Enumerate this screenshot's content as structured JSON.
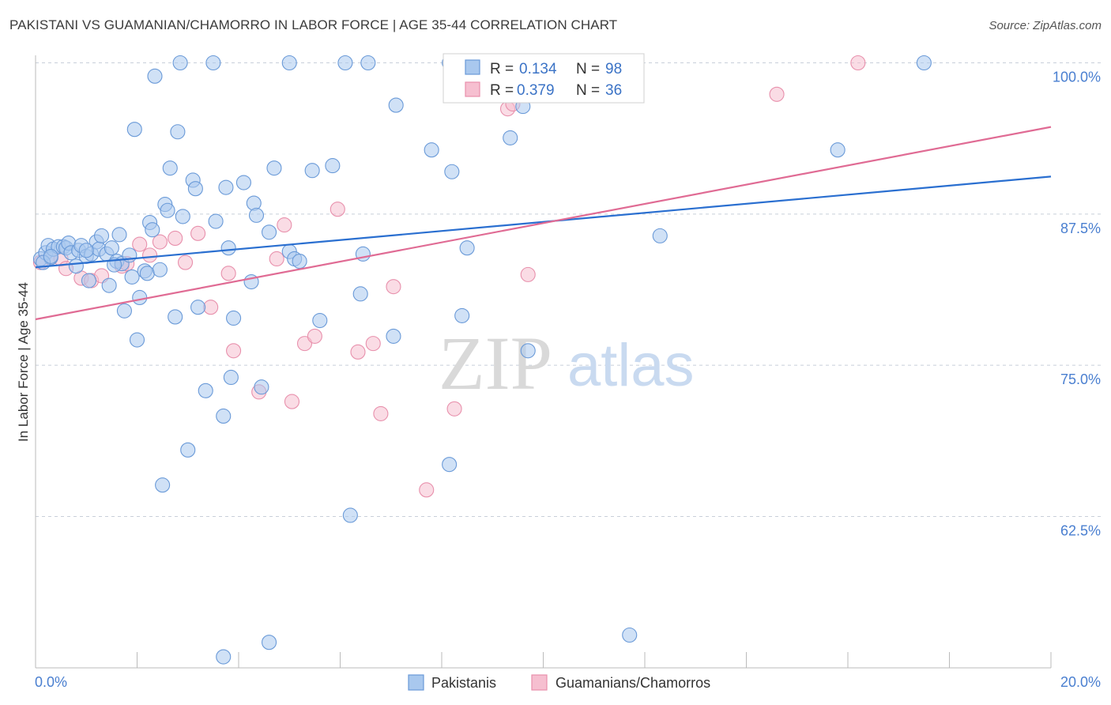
{
  "title": "PAKISTANI VS GUAMANIAN/CHAMORRO IN LABOR FORCE | AGE 35-44 CORRELATION CHART",
  "source": "Source: ZipAtlas.com",
  "watermark": {
    "zip": "ZIP",
    "atlas": "atlas"
  },
  "colors": {
    "series1_fill": "#a9c8ee",
    "series1_stroke": "#6a9ad8",
    "series1_line": "#2a6fd0",
    "series2_fill": "#f6bfd0",
    "series2_stroke": "#e890ac",
    "series2_line": "#e06b94",
    "grid": "#c8cfd9",
    "axis_label": "#4a7fd0"
  },
  "legend": {
    "series1": {
      "r_label": "R =",
      "r_value": "0.134",
      "n_label": "N =",
      "n_value": "98"
    },
    "series2": {
      "r_label": "R =",
      "r_value": "0.379",
      "n_label": "N =",
      "n_value": "36"
    }
  },
  "chart_data": {
    "type": "scatter",
    "xlabel": "",
    "ylabel": "In Labor Force | Age 35-44",
    "xlim": [
      0,
      20
    ],
    "ylim": [
      50,
      101
    ],
    "x_tick_labels": [
      "0.0%",
      "20.0%"
    ],
    "y_ticks": [
      62.5,
      75.0,
      87.5,
      100.0
    ],
    "y_tick_labels": [
      "62.5%",
      "75.0%",
      "87.5%",
      "100.0%"
    ],
    "grid": "horizontal dashed",
    "legend_position": "top-center",
    "series": [
      {
        "name": "Pakistanis",
        "trend": {
          "x": [
            0,
            20
          ],
          "y": [
            83.1,
            90.6
          ]
        },
        "points": [
          [
            0.1,
            83.8
          ],
          [
            0.2,
            84.3
          ],
          [
            0.25,
            84.9
          ],
          [
            0.3,
            83.9
          ],
          [
            0.35,
            84.6
          ],
          [
            0.45,
            84.8
          ],
          [
            0.55,
            84.8
          ],
          [
            0.6,
            84.7
          ],
          [
            0.65,
            85.1
          ],
          [
            0.7,
            84.3
          ],
          [
            0.8,
            83.2
          ],
          [
            0.85,
            84.5
          ],
          [
            0.9,
            84.9
          ],
          [
            1.0,
            84.0
          ],
          [
            1.05,
            82.0
          ],
          [
            1.1,
            84.2
          ],
          [
            1.2,
            85.2
          ],
          [
            1.25,
            84.6
          ],
          [
            1.3,
            85.7
          ],
          [
            1.4,
            84.2
          ],
          [
            1.45,
            81.6
          ],
          [
            1.5,
            84.7
          ],
          [
            1.6,
            83.6
          ],
          [
            1.65,
            85.8
          ],
          [
            1.7,
            83.4
          ],
          [
            1.75,
            79.5
          ],
          [
            1.85,
            84.1
          ],
          [
            1.9,
            82.3
          ],
          [
            1.95,
            94.5
          ],
          [
            2.0,
            77.1
          ],
          [
            2.05,
            80.6
          ],
          [
            2.15,
            82.8
          ],
          [
            2.2,
            82.6
          ],
          [
            2.25,
            86.8
          ],
          [
            2.3,
            86.2
          ],
          [
            2.35,
            98.9
          ],
          [
            2.45,
            82.9
          ],
          [
            2.5,
            65.1
          ],
          [
            2.55,
            88.3
          ],
          [
            2.6,
            87.8
          ],
          [
            2.65,
            91.3
          ],
          [
            2.75,
            79.0
          ],
          [
            2.8,
            94.3
          ],
          [
            2.85,
            100.0
          ],
          [
            2.9,
            87.3
          ],
          [
            3.0,
            68.0
          ],
          [
            3.1,
            90.3
          ],
          [
            3.15,
            89.6
          ],
          [
            3.2,
            79.8
          ],
          [
            3.35,
            72.9
          ],
          [
            3.5,
            100.0
          ],
          [
            3.55,
            86.9
          ],
          [
            3.7,
            70.8
          ],
          [
            3.75,
            89.7
          ],
          [
            3.8,
            84.7
          ],
          [
            3.85,
            74.0
          ],
          [
            3.9,
            78.9
          ],
          [
            4.1,
            90.1
          ],
          [
            4.25,
            81.9
          ],
          [
            4.3,
            88.4
          ],
          [
            4.35,
            87.4
          ],
          [
            4.45,
            73.2
          ],
          [
            4.6,
            86.0
          ],
          [
            4.7,
            91.3
          ],
          [
            5.0,
            84.4
          ],
          [
            5.1,
            83.8
          ],
          [
            5.2,
            83.6
          ],
          [
            5.45,
            91.1
          ],
          [
            5.6,
            78.7
          ],
          [
            5.85,
            91.5
          ],
          [
            6.2,
            62.6
          ],
          [
            6.4,
            80.9
          ],
          [
            6.45,
            84.2
          ],
          [
            6.55,
            100.0
          ],
          [
            7.05,
            77.4
          ],
          [
            7.1,
            96.5
          ],
          [
            7.8,
            92.8
          ],
          [
            8.15,
            66.8
          ],
          [
            8.2,
            91.0
          ],
          [
            8.4,
            79.1
          ],
          [
            8.5,
            84.7
          ],
          [
            9.35,
            93.8
          ],
          [
            9.6,
            96.4
          ],
          [
            9.7,
            76.2
          ],
          [
            12.3,
            85.7
          ],
          [
            15.8,
            92.8
          ],
          [
            17.5,
            100.0
          ],
          [
            0.15,
            83.5
          ],
          [
            0.3,
            84.0
          ],
          [
            1.0,
            84.5
          ],
          [
            1.55,
            83.3
          ],
          [
            3.7,
            50.9
          ],
          [
            4.6,
            52.1
          ],
          [
            11.7,
            52.7
          ],
          [
            5.0,
            100.0
          ],
          [
            6.1,
            100.0
          ],
          [
            8.15,
            100.0
          ],
          [
            11.4,
            100.0
          ]
        ]
      },
      {
        "name": "Guamanians/Chamorros",
        "trend": {
          "x": [
            0,
            20
          ],
          "y": [
            78.8,
            94.7
          ]
        },
        "points": [
          [
            0.1,
            83.5
          ],
          [
            0.3,
            83.9
          ],
          [
            0.5,
            83.8
          ],
          [
            0.6,
            83.0
          ],
          [
            0.9,
            82.2
          ],
          [
            1.1,
            82.0
          ],
          [
            1.3,
            82.4
          ],
          [
            1.7,
            83.2
          ],
          [
            1.8,
            83.4
          ],
          [
            2.05,
            85.0
          ],
          [
            2.25,
            84.1
          ],
          [
            2.45,
            85.2
          ],
          [
            2.75,
            85.5
          ],
          [
            2.95,
            83.5
          ],
          [
            3.2,
            85.9
          ],
          [
            3.45,
            79.8
          ],
          [
            3.8,
            82.6
          ],
          [
            3.9,
            76.2
          ],
          [
            4.4,
            72.8
          ],
          [
            4.75,
            83.8
          ],
          [
            4.9,
            86.6
          ],
          [
            5.05,
            72.0
          ],
          [
            5.3,
            76.8
          ],
          [
            5.5,
            77.4
          ],
          [
            5.95,
            87.9
          ],
          [
            6.35,
            76.1
          ],
          [
            6.65,
            76.8
          ],
          [
            6.8,
            71.0
          ],
          [
            7.05,
            81.5
          ],
          [
            7.7,
            64.7
          ],
          [
            8.25,
            71.4
          ],
          [
            9.3,
            96.2
          ],
          [
            9.4,
            96.6
          ],
          [
            9.7,
            82.5
          ],
          [
            14.6,
            97.4
          ],
          [
            16.2,
            100.0
          ]
        ]
      }
    ]
  }
}
